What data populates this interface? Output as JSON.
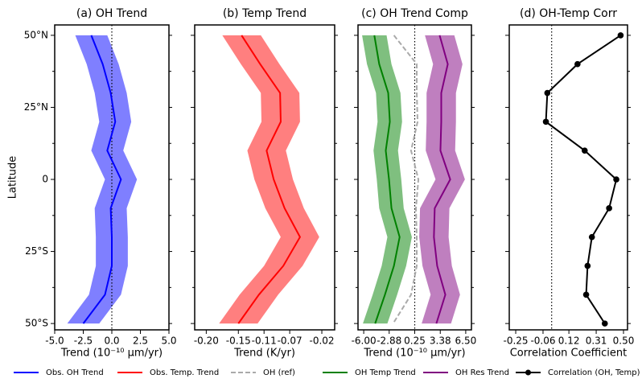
{
  "chart_data": [
    {
      "type": "line",
      "title": "(a) OH Trend",
      "x_label": "Trend (10⁻¹⁰ μm/yr)",
      "y_label": "Latitude",
      "xlim": [
        -5,
        5
      ],
      "xticks": [
        {
          "value": -5,
          "label": "-5.0"
        },
        {
          "value": -2.5,
          "label": "-2.5"
        },
        {
          "value": 0,
          "label": "0.0"
        },
        {
          "value": 2.5,
          "label": "2.5"
        },
        {
          "value": 5,
          "label": "5.0"
        }
      ],
      "ylim": [
        -52.2,
        53.6
      ],
      "yticks": [
        {
          "value": 50,
          "label": "50°N"
        },
        {
          "value": 25,
          "label": "25°N"
        },
        0,
        {
          "value": -25,
          "label": "25°S"
        },
        {
          "value": -50,
          "label": "50°S"
        }
      ],
      "y": [
        50,
        40,
        30,
        20,
        10,
        0,
        -10,
        -20,
        -30,
        -40,
        -50
      ],
      "reference_line": 0,
      "series": [
        {
          "name": "Obs. OH Trend",
          "color": "#0000ff",
          "values": [
            -1.8,
            -0.8,
            -0.1,
            0.3,
            -0.4,
            0.8,
            -0.1,
            0,
            0,
            -0.6,
            -2.5
          ],
          "lower": [
            -3.2,
            -2.2,
            -1.5,
            -1.1,
            -1.8,
            -0.6,
            -1.5,
            -1.4,
            -1.4,
            -2.0,
            -3.9
          ],
          "upper": [
            -0.4,
            0.6,
            1.3,
            1.7,
            1.0,
            2.2,
            1.3,
            1.4,
            1.4,
            0.8,
            -1.1
          ]
        }
      ]
    },
    {
      "type": "line",
      "title": "(b) Temp Trend",
      "x_label": "Trend (K/yr)",
      "xlim": [
        -0.218,
        0
      ],
      "xticks": [
        {
          "value": -0.2,
          "label": "-0.20"
        },
        -0.15,
        -0.11,
        -0.07,
        -0.02
      ],
      "ylim": [
        -52.2,
        53.6
      ],
      "yticks": [
        50,
        25,
        0,
        -25,
        -50
      ],
      "y": [
        50,
        40,
        30,
        20,
        10,
        0,
        -10,
        -20,
        -30,
        -40,
        -50
      ],
      "series": [
        {
          "name": "Obs. Temp. Trend",
          "color": "#ff0000",
          "values": [
            -0.145,
            -0.116,
            -0.085,
            -0.084,
            -0.106,
            -0.095,
            -0.078,
            -0.054,
            -0.08,
            -0.118,
            -0.15
          ],
          "lower": [
            -0.175,
            -0.146,
            -0.115,
            -0.114,
            -0.136,
            -0.125,
            -0.108,
            -0.084,
            -0.11,
            -0.148,
            -0.18
          ],
          "upper": [
            -0.115,
            -0.086,
            -0.055,
            -0.054,
            -0.076,
            -0.065,
            -0.048,
            -0.024,
            -0.05,
            -0.088,
            -0.12
          ]
        }
      ]
    },
    {
      "type": "line",
      "title": "(c) OH Trend Comp",
      "x_label": "Trend (10⁻¹⁰ μm/yr)",
      "xlim": [
        -6.7,
        7.2
      ],
      "xticks": [
        {
          "value": -6,
          "label": "-6.00"
        },
        -2.88,
        0.25,
        3.38,
        {
          "value": 6.5,
          "label": "6.50"
        }
      ],
      "ylim": [
        -52.2,
        53.6
      ],
      "yticks": [
        50,
        25,
        0,
        -25,
        -50
      ],
      "y": [
        50,
        40,
        30,
        20,
        10,
        0,
        -10,
        -20,
        -30,
        -40,
        -50
      ],
      "reference_line": 0.25,
      "series": [
        {
          "name": "OH (ref)",
          "color": "#aaaaaa",
          "linestyle": "dashed",
          "values": [
            -2.3,
            0.5,
            0.5,
            0.6,
            -0.2,
            0.7,
            0.4,
            0.5,
            0.5,
            -0.2,
            -2.4
          ]
        },
        {
          "name": "OH Temp Trend",
          "color": "#008000",
          "values": [
            -4.7,
            -4.1,
            -3.0,
            -2.8,
            -3.3,
            -2.9,
            -2.6,
            -1.6,
            -2.3,
            -3.4,
            -4.6
          ],
          "lower": [
            -6.2,
            -5.6,
            -4.5,
            -4.3,
            -4.8,
            -4.4,
            -4.1,
            -3.1,
            -3.8,
            -4.9,
            -6.1
          ],
          "upper": [
            -3.2,
            -2.6,
            -1.5,
            -1.3,
            -1.8,
            -1.4,
            -1.1,
            -0.1,
            -0.8,
            -1.9,
            -3.1
          ]
        },
        {
          "name": "OH Res Trend",
          "color": "#800080",
          "values": [
            3.3,
            4.3,
            3.5,
            3.5,
            3.4,
            4.6,
            2.7,
            2.6,
            3.0,
            4.0,
            2.9
          ],
          "lower": [
            1.5,
            2.5,
            1.7,
            1.7,
            1.6,
            2.8,
            0.9,
            0.8,
            1.2,
            2.2,
            1.1
          ],
          "upper": [
            5.1,
            6.1,
            5.3,
            5.3,
            5.2,
            6.4,
            4.5,
            4.4,
            4.8,
            5.8,
            4.7
          ]
        }
      ]
    },
    {
      "type": "line",
      "title": "(d) OH-Temp Corr",
      "x_label": "Correlation Coefficient",
      "xlim": [
        -0.295,
        0.528
      ],
      "xticks": [
        -0.25,
        -0.06,
        0.12,
        0.31,
        {
          "value": 0.5,
          "label": "0.50"
        }
      ],
      "ylim": [
        -52.2,
        53.6
      ],
      "yticks": [
        50,
        25,
        0,
        -25,
        -50
      ],
      "y": [
        50,
        40,
        30,
        20,
        10,
        0,
        -10,
        -20,
        -30,
        -40,
        -50
      ],
      "reference_line": 0,
      "series": [
        {
          "name": "Correlation (OH, Temp)",
          "color": "#000000",
          "marker": true,
          "values": [
            0.48,
            0.18,
            -0.03,
            -0.04,
            0.23,
            0.45,
            0.4,
            0.28,
            0.25,
            0.24,
            0.37
          ]
        }
      ]
    }
  ]
}
